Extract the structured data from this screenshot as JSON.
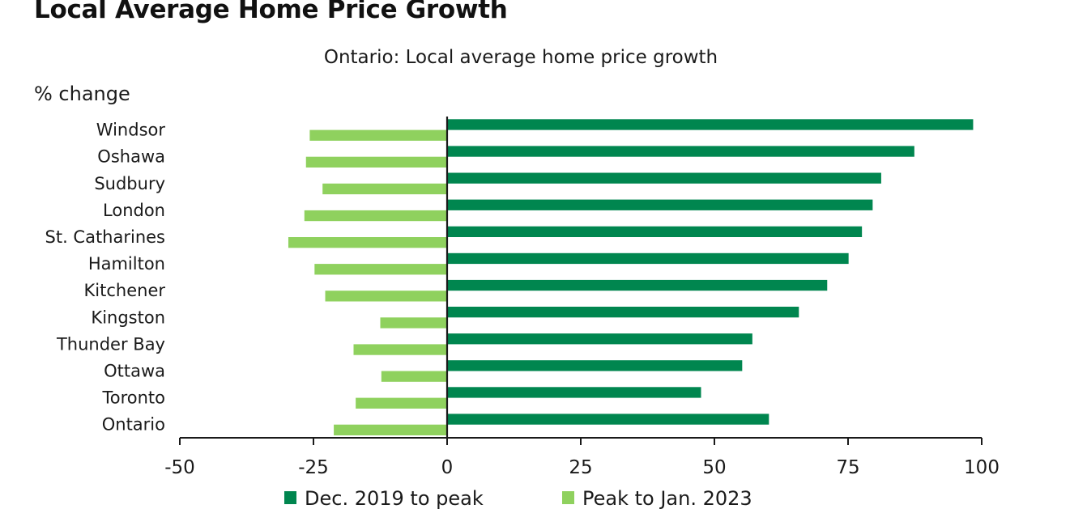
{
  "header": {
    "title": "Local Average Home Price Growth"
  },
  "chart_data": {
    "type": "bar",
    "orientation": "horizontal",
    "title": "Ontario: Local average home price growth",
    "ylabel": "% change",
    "xlabel": "",
    "categories": [
      "Windsor",
      "Oshawa",
      "Sudbury",
      "London",
      "St. Catharines",
      "Hamilton",
      "Kitchener",
      "Kingston",
      "Thunder Bay",
      "Ottawa",
      "Toronto",
      "Ontario"
    ],
    "series": [
      {
        "name": "Dec. 2019 to peak",
        "color": "#00864F",
        "values": [
          98.4,
          87.4,
          81.2,
          79.6,
          77.6,
          75.1,
          71.1,
          65.8,
          57.1,
          55.2,
          47.5,
          60.2
        ]
      },
      {
        "name": "Peak to Jan. 2023",
        "color": "#8FD15E",
        "values": [
          -25.7,
          -26.4,
          -23.3,
          -26.7,
          -29.7,
          -24.8,
          -22.8,
          -12.5,
          -17.5,
          -12.3,
          -17.1,
          -21.2
        ]
      }
    ],
    "xlim": [
      -50,
      100
    ],
    "xticks": [
      -50,
      -25,
      0,
      25,
      50,
      75,
      100
    ],
    "xtick_labels": [
      "-50",
      "-25",
      "0",
      "25",
      "50",
      "75",
      "100"
    ],
    "grid": false,
    "legend_position": "bottom"
  }
}
